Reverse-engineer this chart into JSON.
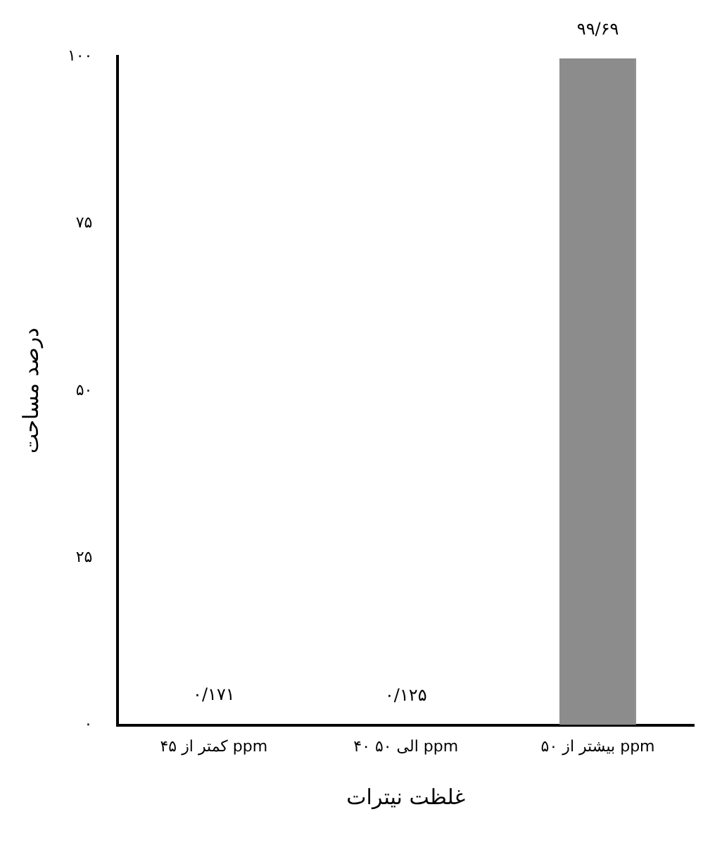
{
  "chart_data": {
    "type": "bar",
    "xlabel": "غلظت نیترات",
    "ylabel": "درصد مساحت",
    "categories": [
      "کمتر از ۴۵ ppm",
      "۴۰ الی ۵۰ ppm",
      "بیشتر از ۵۰ ppm"
    ],
    "values": [
      0.171,
      0.125,
      99.69
    ],
    "value_labels": [
      "۰/۱۷۱",
      "۰/۱۲۵",
      "۹۹/۶۹"
    ],
    "colors": [
      "#000000",
      "#000000",
      "#8c8c8c"
    ],
    "ylim": [
      0,
      100
    ],
    "yticks": [
      {
        "value": 0,
        "label": "۰"
      },
      {
        "value": 25,
        "label": "۲۵"
      },
      {
        "value": 50,
        "label": "۵۰"
      },
      {
        "value": 75,
        "label": "۷۵"
      },
      {
        "value": 100,
        "label": "۱۰۰"
      }
    ],
    "grid": false,
    "legend": false
  }
}
